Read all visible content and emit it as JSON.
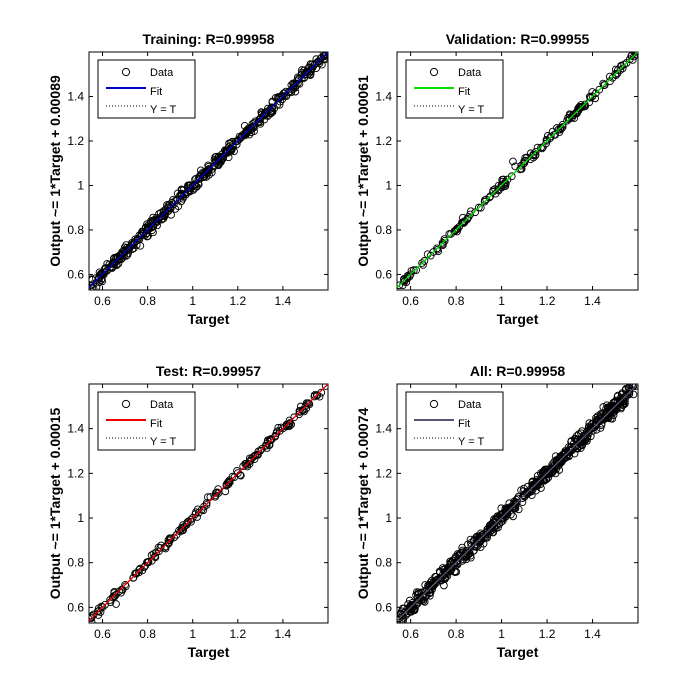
{
  "chart_data": [
    {
      "type": "scatter",
      "title": "Training: R=0.99958",
      "xlabel": "Target",
      "ylabel": "Output ~= 1*Target + 0.00089",
      "xlim": [
        0.54,
        1.6
      ],
      "ylim": [
        0.53,
        1.6
      ],
      "xticks": [
        "0.6",
        "0.8",
        "1",
        "1.2",
        "1.4"
      ],
      "yticks": [
        "0.6",
        "0.8",
        "1",
        "1.2",
        "1.4"
      ],
      "fit": {
        "slope": 1,
        "intercept": 0.00089,
        "color": "#0000cc"
      },
      "marker_color": "#000000",
      "spread": 0.015,
      "density": "high",
      "legend": {
        "placement": "top-left",
        "entries": [
          "Data",
          "Fit",
          "Y = T"
        ]
      },
      "series": [
        {
          "x": [
            0.55,
            0.6,
            0.65,
            0.7,
            0.75,
            0.8,
            0.85,
            0.9,
            0.95,
            1.0,
            1.05,
            1.1,
            1.15,
            1.2,
            1.25,
            1.3,
            1.35,
            1.4,
            1.45,
            1.5,
            1.55,
            1.59
          ],
          "y": [
            0.551,
            0.601,
            0.651,
            0.701,
            0.751,
            0.801,
            0.851,
            0.901,
            0.951,
            1.001,
            1.051,
            1.101,
            1.151,
            1.201,
            1.251,
            1.301,
            1.351,
            1.401,
            1.451,
            1.501,
            1.551,
            1.591
          ]
        }
      ]
    },
    {
      "type": "scatter",
      "title": "Validation: R=0.99955",
      "xlabel": "Target",
      "ylabel": "Output ~= 1*Target + 0.00061",
      "xlim": [
        0.54,
        1.6
      ],
      "ylim": [
        0.53,
        1.6
      ],
      "xticks": [
        "0.6",
        "0.8",
        "1",
        "1.2",
        "1.4"
      ],
      "yticks": [
        "0.6",
        "0.8",
        "1",
        "1.2",
        "1.4"
      ],
      "fit": {
        "slope": 1,
        "intercept": 0.00061,
        "color": "#00dd00"
      },
      "marker_color": "#000000",
      "spread": 0.01,
      "density": "medium",
      "legend": {
        "placement": "top-left",
        "entries": [
          "Data",
          "Fit",
          "Y = T"
        ]
      },
      "series": [
        {
          "x": [
            0.55,
            0.6,
            0.65,
            0.7,
            0.75,
            0.8,
            0.85,
            0.9,
            0.95,
            1.0,
            1.05,
            1.1,
            1.15,
            1.2,
            1.25,
            1.3,
            1.35,
            1.4,
            1.45,
            1.5,
            1.55,
            1.59
          ],
          "y": [
            0.551,
            0.601,
            0.651,
            0.701,
            0.751,
            0.801,
            0.851,
            0.901,
            0.951,
            1.001,
            1.108,
            1.101,
            1.151,
            1.201,
            1.251,
            1.301,
            1.351,
            1.401,
            1.451,
            1.501,
            1.551,
            1.591
          ]
        }
      ]
    },
    {
      "type": "scatter",
      "title": "Test: R=0.99957",
      "xlabel": "Target",
      "ylabel": "Output ~= 1*Target + 0.00015",
      "xlim": [
        0.54,
        1.6
      ],
      "ylim": [
        0.53,
        1.6
      ],
      "xticks": [
        "0.6",
        "0.8",
        "1",
        "1.2",
        "1.4"
      ],
      "yticks": [
        "0.6",
        "0.8",
        "1",
        "1.2",
        "1.4"
      ],
      "fit": {
        "slope": 1,
        "intercept": 0.00015,
        "color": "#ee0000"
      },
      "marker_color": "#000000",
      "spread": 0.01,
      "density": "medium",
      "legend": {
        "placement": "top-left",
        "entries": [
          "Data",
          "Fit",
          "Y = T"
        ]
      },
      "series": [
        {
          "x": [
            0.55,
            0.6,
            0.65,
            0.66,
            0.7,
            0.75,
            0.8,
            0.85,
            0.9,
            0.95,
            1.0,
            1.05,
            1.1,
            1.15,
            1.2,
            1.25,
            1.3,
            1.35,
            1.4,
            1.45,
            1.5,
            1.55,
            1.59
          ],
          "y": [
            0.551,
            0.601,
            0.651,
            0.615,
            0.701,
            0.751,
            0.801,
            0.851,
            0.901,
            0.951,
            1.001,
            1.051,
            1.101,
            1.151,
            1.201,
            1.251,
            1.301,
            1.351,
            1.401,
            1.451,
            1.501,
            1.551,
            1.591
          ]
        }
      ]
    },
    {
      "type": "scatter",
      "title": "All: R=0.99958",
      "xlabel": "Target",
      "ylabel": "Output ~= 1*Target + 0.00074",
      "xlim": [
        0.54,
        1.6
      ],
      "ylim": [
        0.53,
        1.6
      ],
      "xticks": [
        "0.6",
        "0.8",
        "1",
        "1.2",
        "1.4"
      ],
      "yticks": [
        "0.6",
        "0.8",
        "1",
        "1.2",
        "1.4"
      ],
      "fit": {
        "slope": 1,
        "intercept": 0.00074,
        "color": "#555577"
      },
      "marker_color": "#000000",
      "spread": 0.018,
      "density": "very-high",
      "legend": {
        "placement": "top-left",
        "entries": [
          "Data",
          "Fit",
          "Y = T"
        ]
      },
      "series": [
        {
          "x": [
            0.55,
            0.6,
            0.65,
            0.7,
            0.75,
            0.8,
            0.85,
            0.9,
            0.95,
            1.0,
            1.05,
            1.1,
            1.15,
            1.2,
            1.25,
            1.3,
            1.35,
            1.4,
            1.45,
            1.5,
            1.55,
            1.59
          ],
          "y": [
            0.551,
            0.601,
            0.651,
            0.701,
            0.751,
            0.801,
            0.851,
            0.901,
            0.951,
            1.001,
            1.051,
            1.101,
            1.151,
            1.201,
            1.251,
            1.301,
            1.351,
            1.401,
            1.451,
            1.501,
            1.551,
            1.591
          ]
        }
      ]
    }
  ]
}
